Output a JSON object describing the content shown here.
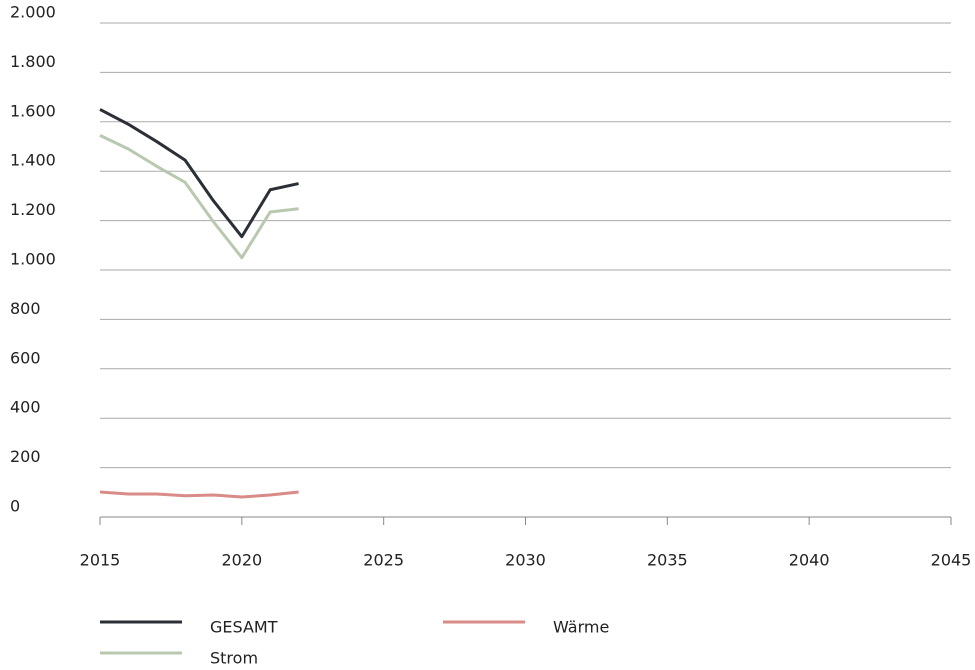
{
  "chart_data": {
    "type": "line",
    "x": [
      2015,
      2016,
      2017,
      2018,
      2019,
      2020,
      2021,
      2022
    ],
    "series": [
      {
        "name": "GESAMT",
        "color": "#2b2f36",
        "values": [
          1650,
          1590,
          1520,
          1445,
          1280,
          1135,
          1325,
          1350
        ]
      },
      {
        "name": "Strom",
        "color": "#b9c9b0",
        "values": [
          1545,
          1490,
          1420,
          1355,
          1195,
          1050,
          1235,
          1248
        ]
      },
      {
        "name": "Wärme",
        "color": "#d98b87",
        "values": [
          101,
          93,
          93,
          86,
          89,
          81,
          89,
          101
        ]
      }
    ],
    "xlim": [
      2015,
      2045
    ],
    "xticks": [
      2015,
      2020,
      2025,
      2030,
      2035,
      2040,
      2045
    ],
    "ylim": [
      0,
      2000
    ],
    "yticks": [
      0,
      200,
      400,
      600,
      800,
      {
        "value": 1000,
        "label": "1.000"
      },
      {
        "value": 1200,
        "label": "1.200"
      },
      {
        "value": 1400,
        "label": "1.400"
      },
      {
        "value": 1600,
        "label": "1.600"
      },
      {
        "value": 1800,
        "label": "1.800"
      },
      {
        "value": 2000,
        "label": "2.000"
      }
    ],
    "grid": true
  }
}
